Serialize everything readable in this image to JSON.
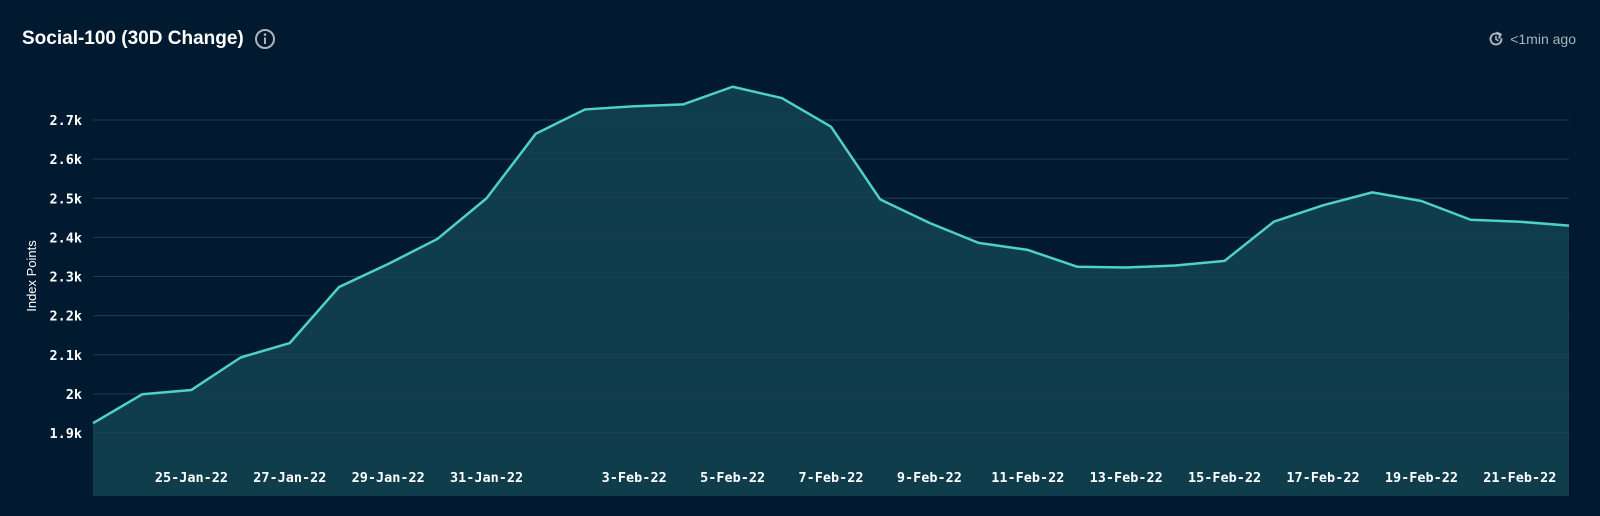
{
  "header": {
    "title": "Social-100 (30D Change)",
    "info_icon": "info-icon",
    "updated_text": "<1min ago",
    "refresh_icon": "refresh-icon"
  },
  "colors": {
    "background": "#011a2f",
    "line": "#4fd1c5",
    "area": "#0f3d4b",
    "grid": "#1b3e55",
    "text": "#ffffff",
    "muted": "#aab4bd"
  },
  "chart_data": {
    "type": "area",
    "title": "Social-100 (30D Change)",
    "xlabel": "",
    "ylabel": "Index Points",
    "ylim": [
      1800,
      2800
    ],
    "yticks": [
      1900,
      2000,
      2100,
      2200,
      2300,
      2400,
      2500,
      2600,
      2700
    ],
    "ytick_labels": [
      "1.9k",
      "2k",
      "2.1k",
      "2.2k",
      "2.3k",
      "2.4k",
      "2.5k",
      "2.6k",
      "2.7k"
    ],
    "xlim": [
      "2022-01-23",
      "2022-02-22"
    ],
    "xtick_labels": [
      "25-Jan-22",
      "27-Jan-22",
      "29-Jan-22",
      "31-Jan-22",
      "3-Feb-22",
      "5-Feb-22",
      "7-Feb-22",
      "9-Feb-22",
      "11-Feb-22",
      "13-Feb-22",
      "15-Feb-22",
      "17-Feb-22",
      "19-Feb-22",
      "21-Feb-22"
    ],
    "xtick_dates": [
      "2022-01-25",
      "2022-01-27",
      "2022-01-29",
      "2022-01-31",
      "2022-02-03",
      "2022-02-05",
      "2022-02-07",
      "2022-02-09",
      "2022-02-11",
      "2022-02-13",
      "2022-02-15",
      "2022-02-17",
      "2022-02-19",
      "2022-02-21"
    ],
    "grid": true,
    "legend": "none",
    "series": [
      {
        "x": [
          "2022-01-23",
          "2022-01-24",
          "2022-01-25",
          "2022-01-26",
          "2022-01-27",
          "2022-01-28",
          "2022-01-29",
          "2022-01-30",
          "2022-01-31",
          "2022-02-01",
          "2022-02-02",
          "2022-02-03",
          "2022-02-04",
          "2022-02-05",
          "2022-02-06",
          "2022-02-07",
          "2022-02-08",
          "2022-02-09",
          "2022-02-10",
          "2022-02-11",
          "2022-02-12",
          "2022-02-13",
          "2022-02-14",
          "2022-02-15",
          "2022-02-16",
          "2022-02-17",
          "2022-02-18",
          "2022-02-19",
          "2022-02-20",
          "2022-02-21",
          "2022-02-22"
        ],
        "values": [
          1925,
          1999,
          2010,
          2093,
          2130,
          2273,
          2332,
          2396,
          2500,
          2665,
          2727,
          2735,
          2740,
          2785,
          2756,
          2683,
          2497,
          2437,
          2386,
          2368,
          2325,
          2323,
          2328,
          2340,
          2440,
          2482,
          2515,
          2493,
          2445,
          2440,
          2430
        ]
      }
    ]
  }
}
